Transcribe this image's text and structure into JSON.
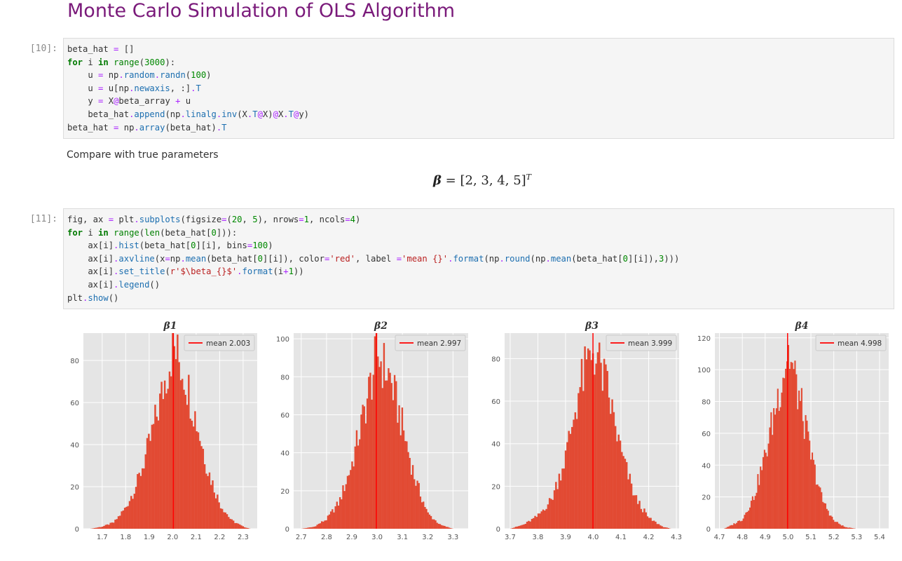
{
  "heading": "Monte Carlo Simulation of OLS Algorithm",
  "cells": [
    {
      "prompt": "[10]:"
    },
    {
      "prompt": "[11]:"
    }
  ],
  "markdown_text": "Compare with true parameters",
  "math": {
    "lhs": "β",
    "eq": " = [2, 3, 4, 5]",
    "sup": "T"
  },
  "colors": {
    "heading": "#7a1a7a",
    "hist": "#e24a33",
    "vline": "#ff0000",
    "plot_bg": "#e5e5e5",
    "grid": "#ffffff"
  },
  "chart_data": [
    {
      "type": "histogram",
      "title": "β1",
      "legend": "mean 2.003",
      "legend_position": "upper right",
      "mean": 2.003,
      "xlim": [
        1.62,
        2.36
      ],
      "ylim": [
        0,
        93
      ],
      "xticks": [
        "1.7",
        "1.8",
        "1.9",
        "2.0",
        "2.1",
        "2.2",
        "2.3"
      ],
      "yticks": [
        "0",
        "20",
        "40",
        "60",
        "80"
      ],
      "x": [
        1.65,
        1.7,
        1.75,
        1.8,
        1.85,
        1.9,
        1.95,
        2.0,
        2.05,
        2.1,
        2.15,
        2.2,
        2.25,
        2.3,
        2.33
      ],
      "y": [
        0,
        1,
        3,
        10,
        22,
        40,
        62,
        87,
        74,
        52,
        28,
        12,
        4,
        1,
        0
      ]
    },
    {
      "type": "histogram",
      "title": "β2",
      "legend": "mean 2.997",
      "legend_position": "upper right",
      "mean": 2.997,
      "xlim": [
        2.67,
        3.36
      ],
      "ylim": [
        0,
        103
      ],
      "xticks": [
        "2.7",
        "2.8",
        "2.9",
        "3.0",
        "3.1",
        "3.2",
        "3.3"
      ],
      "yticks": [
        "0",
        "20",
        "40",
        "60",
        "80",
        "100"
      ],
      "x": [
        2.7,
        2.75,
        2.8,
        2.85,
        2.9,
        2.95,
        3.0,
        3.05,
        3.1,
        3.15,
        3.2,
        3.25,
        3.3
      ],
      "y": [
        0,
        1,
        5,
        14,
        34,
        62,
        92,
        80,
        54,
        26,
        8,
        2,
        0
      ]
    },
    {
      "type": "histogram",
      "title": "β3",
      "legend": "mean 3.999",
      "legend_position": "upper right",
      "mean": 3.999,
      "xlim": [
        3.68,
        4.31
      ],
      "ylim": [
        0,
        92
      ],
      "xticks": [
        "3.7",
        "3.8",
        "3.9",
        "4.0",
        "4.1",
        "4.2",
        "4.3"
      ],
      "yticks": [
        "0",
        "20",
        "40",
        "60",
        "80"
      ],
      "x": [
        3.7,
        3.75,
        3.8,
        3.85,
        3.9,
        3.95,
        4.0,
        4.05,
        4.1,
        4.15,
        4.2,
        4.25,
        4.28
      ],
      "y": [
        0,
        2,
        6,
        14,
        34,
        66,
        85,
        66,
        36,
        15,
        5,
        1,
        0
      ]
    },
    {
      "type": "histogram",
      "title": "β4",
      "legend": "mean 4.998",
      "legend_position": "upper right",
      "mean": 4.998,
      "xlim": [
        4.68,
        5.44
      ],
      "ylim": [
        0,
        123
      ],
      "xticks": [
        "4.7",
        "4.8",
        "4.9",
        "5.0",
        "5.1",
        "5.2",
        "5.3",
        "5.4"
      ],
      "yticks": [
        "0",
        "20",
        "40",
        "60",
        "80",
        "100",
        "120"
      ],
      "x": [
        4.72,
        4.75,
        4.8,
        4.85,
        4.9,
        4.95,
        5.0,
        5.05,
        5.1,
        5.15,
        5.2,
        5.25,
        5.3
      ],
      "y": [
        0,
        2,
        6,
        20,
        46,
        80,
        112,
        82,
        46,
        18,
        5,
        1,
        0
      ]
    }
  ]
}
